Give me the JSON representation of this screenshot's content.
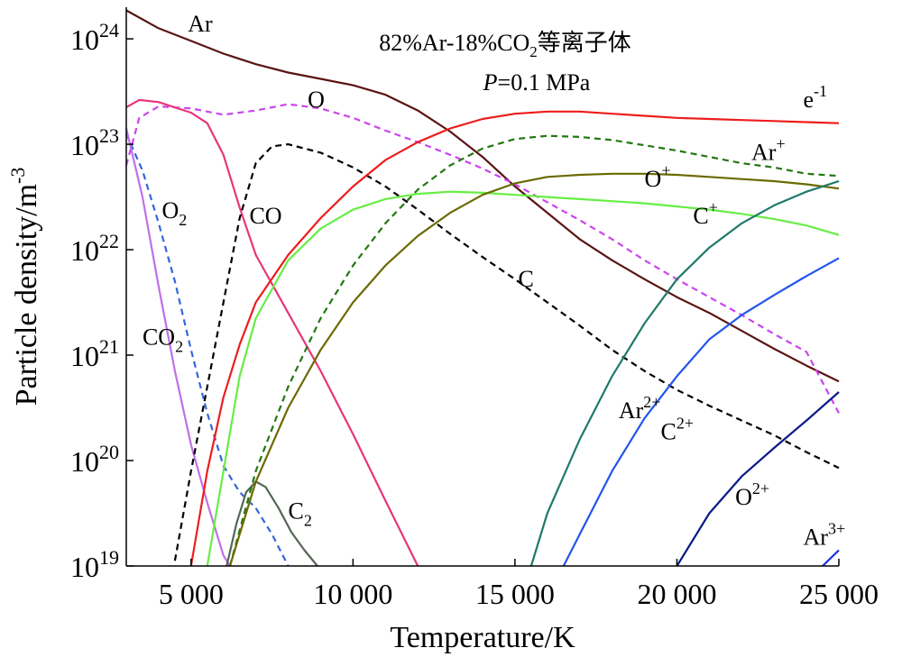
{
  "chart_data": {
    "type": "line",
    "title": "82%Ar-18%CO",
    "title_sub": "2",
    "title_suffix": "等离子体",
    "annotation_p_italic": "P",
    "annotation_p_rest": "=0.1 MPa",
    "xlabel": "Temperature/K",
    "ylabel_main": "Particle density/m",
    "ylabel_sup": "-3",
    "x_scale": "linear",
    "y_scale": "log",
    "xlim": [
      3000,
      25000
    ],
    "ylim": [
      19,
      24.3
    ],
    "x_ticks": [
      {
        "value": 5000,
        "label": "5 000"
      },
      {
        "value": 10000,
        "label": "10 000"
      },
      {
        "value": 15000,
        "label": "15 000"
      },
      {
        "value": 20000,
        "label": "20 000"
      },
      {
        "value": 25000,
        "label": "25 000"
      }
    ],
    "y_ticks": [
      {
        "value": 19,
        "base": "10",
        "exp": "19"
      },
      {
        "value": 20,
        "base": "10",
        "exp": "20"
      },
      {
        "value": 21,
        "base": "10",
        "exp": "21"
      },
      {
        "value": 22,
        "base": "10",
        "exp": "22"
      },
      {
        "value": 23,
        "base": "10",
        "exp": "23"
      },
      {
        "value": 24,
        "base": "10",
        "exp": "24"
      }
    ],
    "grid": false,
    "series": [
      {
        "name": "Ar",
        "color": "#5a1414",
        "dash": false,
        "x": [
          3000,
          4000,
          5000,
          6000,
          7000,
          8000,
          9000,
          10000,
          11000,
          12000,
          13000,
          14000,
          15000,
          16000,
          17000,
          18000,
          19000,
          20000,
          21000,
          22000,
          23000,
          24000,
          25000
        ],
        "y": [
          24.27,
          24.1,
          23.98,
          23.86,
          23.76,
          23.68,
          23.62,
          23.56,
          23.47,
          23.32,
          23.12,
          22.88,
          22.6,
          22.35,
          22.1,
          21.9,
          21.72,
          21.55,
          21.4,
          21.23,
          21.06,
          20.9,
          20.75
        ]
      },
      {
        "name": "O",
        "color": "#cc44ee",
        "dash": true,
        "x": [
          3000,
          3400,
          4000,
          5000,
          6000,
          7000,
          8000,
          9000,
          10000,
          11000,
          12000,
          13000,
          14000,
          15000,
          16000,
          17000,
          18000,
          19000,
          20000,
          21000,
          22000,
          23000,
          24000,
          25000
        ],
        "y": [
          22.8,
          23.25,
          23.36,
          23.34,
          23.28,
          23.32,
          23.38,
          23.34,
          23.25,
          23.13,
          23.02,
          22.9,
          22.77,
          22.62,
          22.45,
          22.28,
          22.1,
          21.9,
          21.72,
          21.55,
          21.38,
          21.2,
          21.03,
          20.45
        ]
      },
      {
        "name": "CO",
        "color": "#e8357c",
        "dash": false,
        "x": [
          3000,
          3400,
          4000,
          5000,
          5500,
          6000,
          6500,
          7000,
          8000,
          9000,
          10000,
          11000,
          12000
        ],
        "y": [
          23.35,
          23.42,
          23.4,
          23.3,
          23.2,
          22.9,
          22.4,
          21.95,
          21.4,
          20.85,
          20.25,
          19.62,
          19.0
        ]
      },
      {
        "name": "O2",
        "color": "#3366dd",
        "dash": true,
        "x": [
          3000,
          3500,
          4000,
          4500,
          5000,
          5500,
          6000,
          6500,
          7000,
          7500,
          8000
        ],
        "y": [
          23.1,
          22.75,
          22.25,
          21.7,
          21.05,
          20.45,
          19.95,
          19.7,
          19.55,
          19.3,
          19.0
        ]
      },
      {
        "name": "CO2",
        "color": "#c070e8",
        "dash": false,
        "x": [
          3000,
          3500,
          4000,
          4500,
          5000,
          5500,
          6000,
          6200
        ],
        "y": [
          23.15,
          22.5,
          21.65,
          20.85,
          20.15,
          19.6,
          19.1,
          19.0
        ]
      },
      {
        "name": "C",
        "color": "#000000",
        "dash": true,
        "x": [
          4500,
          5000,
          5500,
          6000,
          6500,
          7000,
          7500,
          8000,
          9000,
          10000,
          11000,
          12000,
          13000,
          14000,
          15000,
          16000,
          17000,
          18000,
          19000,
          20000,
          21000,
          22000,
          23000,
          24000,
          25000
        ],
        "y": [
          19.05,
          19.9,
          20.7,
          21.5,
          22.3,
          22.82,
          22.98,
          23.0,
          22.92,
          22.78,
          22.6,
          22.38,
          22.15,
          21.93,
          21.72,
          21.5,
          21.28,
          21.05,
          20.85,
          20.67,
          20.52,
          20.38,
          20.24,
          20.08,
          19.93
        ]
      },
      {
        "name": "C2",
        "color": "#556655",
        "dash": false,
        "x": [
          6100,
          6400,
          6700,
          7000,
          7300,
          7700,
          8100,
          8500,
          8900
        ],
        "y": [
          19.0,
          19.4,
          19.7,
          19.8,
          19.75,
          19.55,
          19.32,
          19.15,
          19.0
        ]
      },
      {
        "name": "e-1",
        "color": "#ee1c1c",
        "dash": false,
        "x": [
          5000,
          5500,
          6000,
          6500,
          7000,
          8000,
          9000,
          10000,
          11000,
          12000,
          13000,
          14000,
          15000,
          16000,
          17000,
          18000,
          19000,
          20000,
          21000,
          22000,
          23000,
          24000,
          25000
        ],
        "y": [
          19.0,
          19.9,
          20.6,
          21.1,
          21.5,
          21.95,
          22.3,
          22.6,
          22.85,
          23.02,
          23.15,
          23.24,
          23.29,
          23.31,
          23.31,
          23.29,
          23.27,
          23.25,
          23.24,
          23.23,
          23.22,
          23.21,
          23.2
        ]
      },
      {
        "name": "C+",
        "color": "#66ee44",
        "dash": false,
        "x": [
          5500,
          6000,
          6500,
          7000,
          8000,
          9000,
          10000,
          11000,
          12000,
          13000,
          14000,
          15000,
          16000,
          17000,
          18000,
          19000,
          20000,
          21000,
          22000,
          23000,
          24000,
          25000
        ],
        "y": [
          19.0,
          19.9,
          20.8,
          21.35,
          21.9,
          22.2,
          22.38,
          22.48,
          22.53,
          22.55,
          22.54,
          22.52,
          22.5,
          22.48,
          22.46,
          22.44,
          22.41,
          22.38,
          22.34,
          22.29,
          22.23,
          22.14
        ]
      },
      {
        "name": "Ar+",
        "color": "#227711",
        "dash": true,
        "x": [
          6200,
          7000,
          8000,
          9000,
          10000,
          11000,
          12000,
          13000,
          14000,
          15000,
          16000,
          17000,
          18000,
          19000,
          20000,
          21000,
          22000,
          23000,
          24000,
          25000
        ],
        "y": [
          19.0,
          19.9,
          20.7,
          21.35,
          21.85,
          22.25,
          22.57,
          22.8,
          22.96,
          23.05,
          23.08,
          23.07,
          23.04,
          22.99,
          22.94,
          22.88,
          22.82,
          22.78,
          22.72,
          22.7
        ]
      },
      {
        "name": "O+",
        "color": "#6b6a00",
        "dash": false,
        "x": [
          6200,
          7000,
          8000,
          9000,
          10000,
          11000,
          12000,
          13000,
          14000,
          15000,
          16000,
          17000,
          18000,
          19000,
          20000,
          21000,
          22000,
          23000,
          24000,
          25000
        ],
        "y": [
          19.0,
          19.8,
          20.5,
          21.05,
          21.5,
          21.85,
          22.13,
          22.35,
          22.52,
          22.63,
          22.69,
          22.71,
          22.72,
          22.72,
          22.71,
          22.69,
          22.67,
          22.65,
          22.62,
          22.58
        ]
      },
      {
        "name": "Ar2+",
        "color": "#1e7a6a",
        "dash": false,
        "x": [
          15500,
          16000,
          17000,
          18000,
          19000,
          20000,
          21000,
          22000,
          23000,
          24000,
          25000
        ],
        "y": [
          19.0,
          19.5,
          20.2,
          20.8,
          21.3,
          21.72,
          22.02,
          22.25,
          22.42,
          22.55,
          22.65
        ]
      },
      {
        "name": "C2+",
        "color": "#2255ee",
        "dash": false,
        "x": [
          16500,
          17000,
          18000,
          19000,
          20000,
          21000,
          22000,
          23000,
          24000,
          25000
        ],
        "y": [
          19.0,
          19.3,
          19.9,
          20.4,
          20.8,
          21.15,
          21.38,
          21.57,
          21.75,
          21.92
        ]
      },
      {
        "name": "O2+",
        "color": "#0a1a88",
        "dash": false,
        "x": [
          20000,
          21000,
          22000,
          23000,
          24000,
          25000
        ],
        "y": [
          19.0,
          19.5,
          19.85,
          20.12,
          20.38,
          20.65
        ]
      },
      {
        "name": "Ar3+",
        "color": "#1a2cdd",
        "dash": false,
        "x": [
          24500,
          25000
        ],
        "y": [
          19.0,
          19.15
        ]
      }
    ],
    "annotations": [
      {
        "base": "Ar",
        "sup": "",
        "sub": "",
        "x": 4900,
        "y": 24.07
      },
      {
        "base": "O",
        "sup": "",
        "sub": "",
        "x": 8600,
        "y": 23.35
      },
      {
        "base": "e",
        "sup": "-1",
        "sub": "",
        "x": 23900,
        "y": 23.35
      },
      {
        "base": "Ar",
        "sup": "+",
        "sub": "",
        "x": 22300,
        "y": 22.85
      },
      {
        "base": "O",
        "sup": "+",
        "sub": "",
        "x": 19000,
        "y": 22.6
      },
      {
        "base": "O",
        "sub": "2",
        "sup": "",
        "x": 4100,
        "y": 22.3
      },
      {
        "base": "CO",
        "sup": "",
        "sub": "",
        "x": 6800,
        "y": 22.25
      },
      {
        "base": "C",
        "sup": "+",
        "sub": "",
        "x": 20500,
        "y": 22.25
      },
      {
        "base": "C",
        "sup": "",
        "sub": "",
        "x": 15100,
        "y": 21.65
      },
      {
        "base": "CO",
        "sub": "2",
        "sup": "",
        "x": 3500,
        "y": 21.1
      },
      {
        "base": "Ar",
        "sup": "2+",
        "sub": "",
        "x": 18200,
        "y": 20.4
      },
      {
        "base": "C",
        "sup": "2+",
        "sub": "",
        "x": 19500,
        "y": 20.2
      },
      {
        "base": "C",
        "sub": "2",
        "sup": "",
        "x": 8000,
        "y": 19.45
      },
      {
        "base": "O",
        "sup": "2+",
        "sub": "",
        "x": 21800,
        "y": 19.58
      },
      {
        "base": "Ar",
        "sup": "3+",
        "sub": "",
        "x": 23900,
        "y": 19.2
      }
    ]
  }
}
